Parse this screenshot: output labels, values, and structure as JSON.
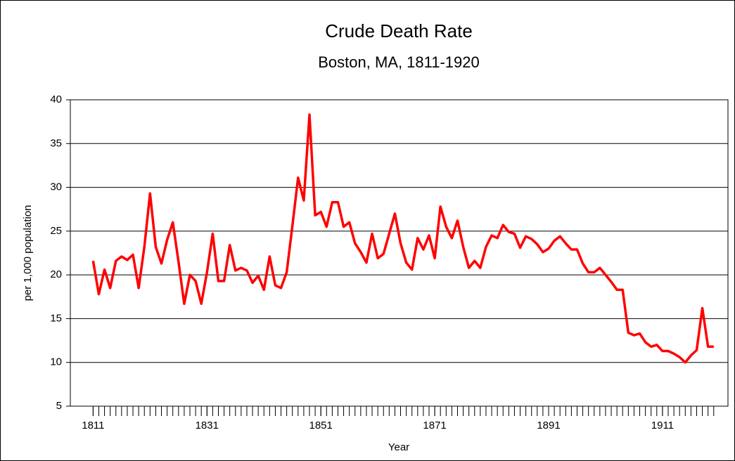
{
  "chart_data": {
    "type": "line",
    "title": "Crude Death Rate",
    "subtitle": "Boston, MA, 1811-1920",
    "x_label": "Year",
    "y_label": "per 1,000 population",
    "x": [
      1811,
      1812,
      1813,
      1814,
      1815,
      1816,
      1817,
      1818,
      1819,
      1820,
      1821,
      1822,
      1823,
      1824,
      1825,
      1826,
      1827,
      1828,
      1829,
      1830,
      1831,
      1832,
      1833,
      1834,
      1835,
      1836,
      1837,
      1838,
      1839,
      1840,
      1841,
      1842,
      1843,
      1844,
      1845,
      1846,
      1847,
      1848,
      1849,
      1850,
      1851,
      1852,
      1853,
      1854,
      1855,
      1856,
      1857,
      1858,
      1859,
      1860,
      1861,
      1862,
      1863,
      1864,
      1865,
      1866,
      1867,
      1868,
      1869,
      1870,
      1871,
      1872,
      1873,
      1874,
      1875,
      1876,
      1877,
      1878,
      1879,
      1880,
      1881,
      1882,
      1883,
      1884,
      1885,
      1886,
      1887,
      1888,
      1889,
      1890,
      1891,
      1892,
      1893,
      1894,
      1895,
      1896,
      1897,
      1898,
      1899,
      1900,
      1901,
      1902,
      1903,
      1904,
      1905,
      1906,
      1907,
      1908,
      1909,
      1910,
      1911,
      1912,
      1913,
      1914,
      1915,
      1916,
      1917,
      1918,
      1919,
      1920
    ],
    "series": [
      {
        "name": "Crude Death Rate",
        "color": "#ff0000",
        "values": [
          21.6,
          17.8,
          20.6,
          18.5,
          21.6,
          22.1,
          21.7,
          22.3,
          18.5,
          23.2,
          29.3,
          23.2,
          21.3,
          24.0,
          26.0,
          21.5,
          16.7,
          20.0,
          19.3,
          16.7,
          20.3,
          24.7,
          19.3,
          19.3,
          23.4,
          20.5,
          20.8,
          20.5,
          19.1,
          19.9,
          18.3,
          22.1,
          18.8,
          18.5,
          20.3,
          25.6,
          31.1,
          28.5,
          38.3,
          26.8,
          27.2,
          25.5,
          28.3,
          28.3,
          25.5,
          26.0,
          23.6,
          22.6,
          21.4,
          24.7,
          21.9,
          22.4,
          24.7,
          27.0,
          23.6,
          21.4,
          20.6,
          24.2,
          22.9,
          24.5,
          21.9,
          27.8,
          25.5,
          24.2,
          26.2,
          23.2,
          20.8,
          21.6,
          20.8,
          23.2,
          24.5,
          24.2,
          25.7,
          24.9,
          24.7,
          23.1,
          24.4,
          24.1,
          23.5,
          22.6,
          23.0,
          23.9,
          24.4,
          23.6,
          22.9,
          22.9,
          21.3,
          20.3,
          20.3,
          20.8,
          20.0,
          19.2,
          18.3,
          18.3,
          13.4,
          13.1,
          13.3,
          12.3,
          11.8,
          12.0,
          11.3,
          11.3,
          11.0,
          10.6,
          10.0,
          10.8,
          11.4,
          16.2,
          11.8,
          11.8
        ]
      }
    ],
    "xlim": [
      1807,
      1922.5
    ],
    "xticks": [
      1811,
      1831,
      1851,
      1871,
      1891,
      1911
    ],
    "ylim": [
      5,
      40
    ],
    "yticks": [
      5,
      10,
      15,
      20,
      25,
      30,
      35,
      40
    ],
    "grid": true
  }
}
